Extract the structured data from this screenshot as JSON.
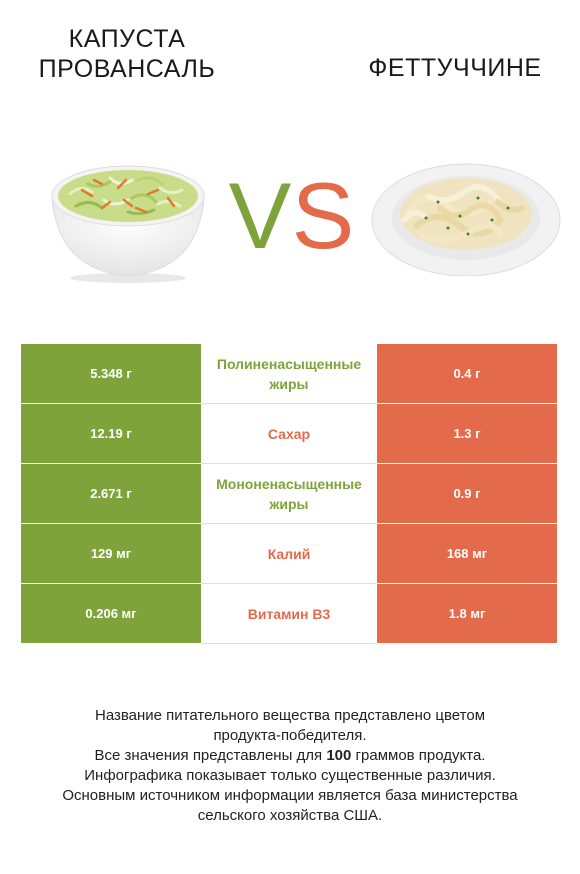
{
  "header": {
    "left_title_line1": "КАПУСТА",
    "left_title_line2": "ПРОВАНСАЛЬ",
    "right_title": "ФЕТТУЧЧИНЕ",
    "vs_v": "V",
    "vs_s": "S"
  },
  "colors": {
    "left": "#7fa33b",
    "right": "#e46a4c"
  },
  "rows": [
    {
      "left": "5.348 г",
      "nutrient": "Полиненасыщенные жиры",
      "right": "0.4 г",
      "winner": "left"
    },
    {
      "left": "12.19 г",
      "nutrient": "Сахар",
      "right": "1.3 г",
      "winner": "right"
    },
    {
      "left": "2.671 г",
      "nutrient": "Мононенасыщенные жиры",
      "right": "0.9 г",
      "winner": "left"
    },
    {
      "left": "129 мг",
      "nutrient": "Калий",
      "right": "168 мг",
      "winner": "right"
    },
    {
      "left": "0.206 мг",
      "nutrient": "Витамин B3",
      "right": "1.8 мг",
      "winner": "right"
    }
  ],
  "footer": {
    "line1": "Название питательного вещества представлено цветом",
    "line2": "продукта-победителя.",
    "line3_pre": "Все значения представлены для ",
    "line3_bold": "100",
    "line3_post": " граммов продукта.",
    "line4": "Инфографика показывает только существенные различия.",
    "line5": "Основным источником информации является база министерства",
    "line6": "сельского хозяйства США."
  }
}
